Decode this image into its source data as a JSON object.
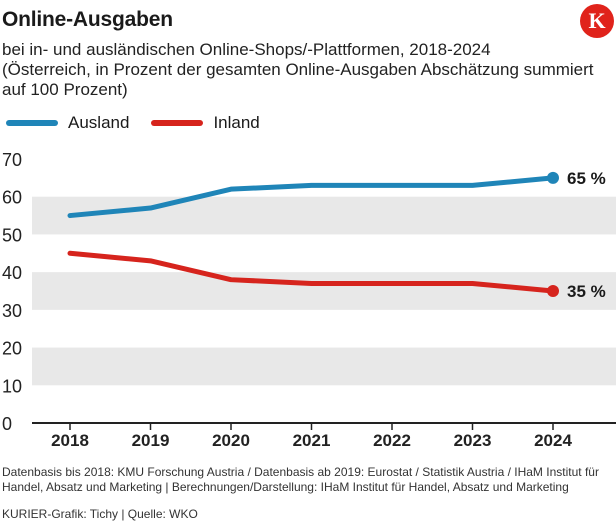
{
  "header": {
    "title": "Online-Ausgaben",
    "subtitle_line1": "bei in- und ausländischen Online-Shops/-Plattformen, 2018-2024",
    "subtitle_line2": "(Österreich, in Prozent der gesamten Online-Ausgaben Abschätzung summiert",
    "subtitle_line3": "auf 100 Prozent)",
    "logo_letter": "K"
  },
  "chart_data": {
    "type": "line",
    "title": "Online-Ausgaben",
    "x": [
      "2018",
      "2019",
      "2020",
      "2021",
      "2022",
      "2023",
      "2024"
    ],
    "series": [
      {
        "name": "Ausland",
        "color": "#1f85b8",
        "values": [
          55,
          57,
          62,
          63,
          63,
          63,
          65
        ],
        "end_label": "65 %"
      },
      {
        "name": "Inland",
        "color": "#d6241d",
        "values": [
          45,
          43,
          38,
          37,
          37,
          37,
          35
        ],
        "end_label": "35 %"
      }
    ],
    "ylim": [
      0,
      70
    ],
    "yticks": [
      "0",
      "10",
      "20",
      "30",
      "40",
      "50",
      "60",
      "70"
    ],
    "xlabel": "",
    "ylabel": "",
    "grid": "alternating horizontal bands",
    "legend": "top-left"
  },
  "footer": {
    "source_line1": "Datenbasis bis 2018: KMU Forschung Austria / Datenbasis ab 2019: Eurostat / Statistik Austria / IHaM Institut für",
    "source_line2": "Handel, Absatz und Marketing | Berechnungen/Darstellung: IHaM Institut für Handel, Absatz und Marketing",
    "credit": "KURIER-Grafik: Tichy | Quelle: WKO"
  },
  "colors": {
    "band": "#e8e8e8",
    "axis": "#222222"
  }
}
